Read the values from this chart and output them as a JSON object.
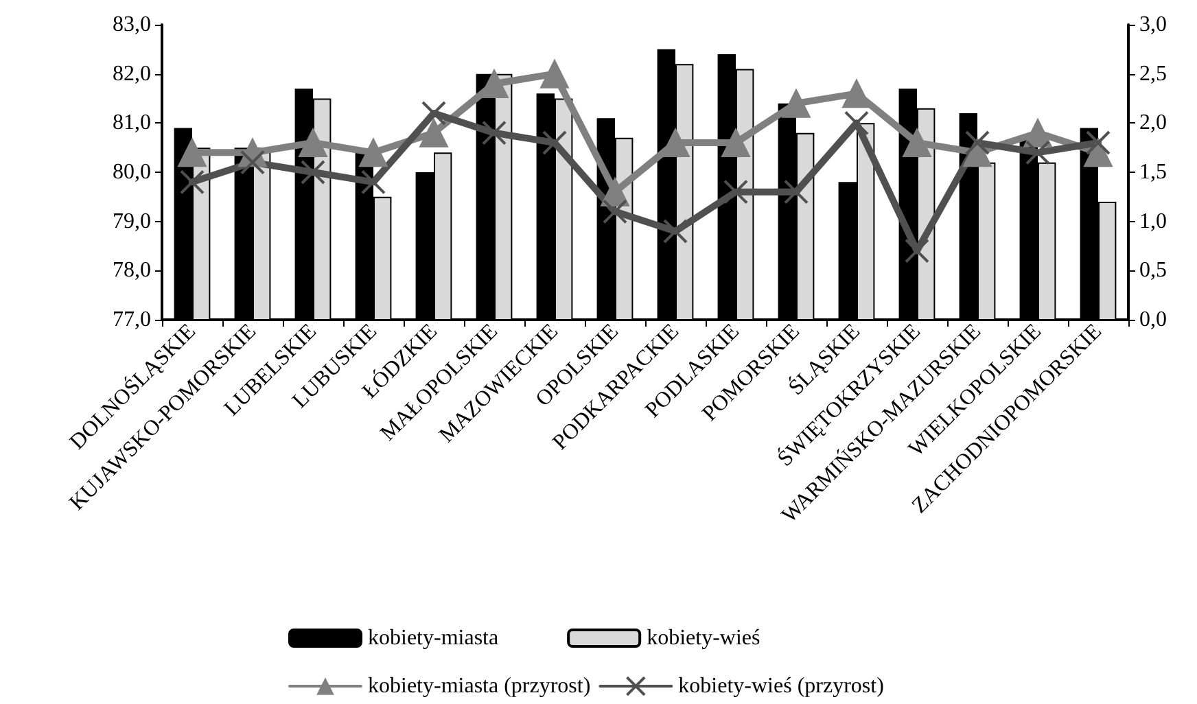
{
  "chart_data": {
    "type": "bar",
    "categories": [
      "DOLNOŚLĄSKIE",
      "KUJAWSKO-POMORSKIE",
      "LUBELSKIE",
      "LUBUSKIE",
      "ŁÓDZKIE",
      "MAŁOPOLSKIE",
      "MAZOWIECKIE",
      "OPOLSKIE",
      "PODKARPACKIE",
      "PODLASKIE",
      "POMORSKIE",
      "ŚLĄSKIE",
      "ŚWIĘTOKRZYSKIE",
      "WARMIŃSKO-MAZURSKIE",
      "WIELKOPOLSKIE",
      "ZACHODNIOPOMORSKIE"
    ],
    "series": [
      {
        "name": "kobiety-miasta",
        "color": "#000000",
        "values": [
          80.9,
          80.5,
          81.7,
          80.4,
          80.0,
          82.0,
          81.6,
          81.1,
          82.5,
          82.4,
          81.4,
          79.8,
          81.7,
          81.2,
          80.7,
          80.9
        ]
      },
      {
        "name": "kobiety-wieś",
        "color": "#d9d9d9",
        "values": [
          80.5,
          80.5,
          81.5,
          79.5,
          80.4,
          82.0,
          81.5,
          80.7,
          82.2,
          82.1,
          80.8,
          81.0,
          81.3,
          80.2,
          80.2,
          79.4
        ]
      },
      {
        "name": "kobiety-miasta (przyrost)",
        "type": "line",
        "axis": "y2",
        "marker": "triangle",
        "color": "#808080",
        "values": [
          1.7,
          1.7,
          1.8,
          1.7,
          1.9,
          2.4,
          2.5,
          1.3,
          1.8,
          1.8,
          2.2,
          2.3,
          1.8,
          1.7,
          1.9,
          1.7
        ]
      },
      {
        "name": "kobiety-wieś (przyrost)",
        "type": "line",
        "axis": "y2",
        "marker": "cross",
        "color": "#505050",
        "values": [
          1.4,
          1.6,
          1.5,
          1.4,
          2.1,
          1.9,
          1.8,
          1.1,
          0.9,
          1.3,
          1.3,
          2.0,
          0.7,
          1.8,
          1.7,
          1.8
        ]
      }
    ],
    "ylim": [
      77,
      83
    ],
    "yticks": [
      {
        "value": 77,
        "label": "77,0"
      },
      {
        "value": 78,
        "label": "78,0"
      },
      {
        "value": 79,
        "label": "79,0"
      },
      {
        "value": 80,
        "label": "80,0"
      },
      {
        "value": 81,
        "label": "81,0"
      },
      {
        "value": 82,
        "label": "82,0"
      },
      {
        "value": 83,
        "label": "83,0"
      }
    ],
    "y2lim": [
      0,
      3
    ],
    "y2ticks": [
      {
        "value": 0,
        "label": "0,0"
      },
      {
        "value": 0.5,
        "label": "0,5"
      },
      {
        "value": 1,
        "label": "1,0"
      },
      {
        "value": 1.5,
        "label": "1,5"
      },
      {
        "value": 2,
        "label": "2,0"
      },
      {
        "value": 2.5,
        "label": "2,5"
      },
      {
        "value": 3,
        "label": "3,0"
      }
    ],
    "grid": false,
    "legend": "bottom"
  }
}
